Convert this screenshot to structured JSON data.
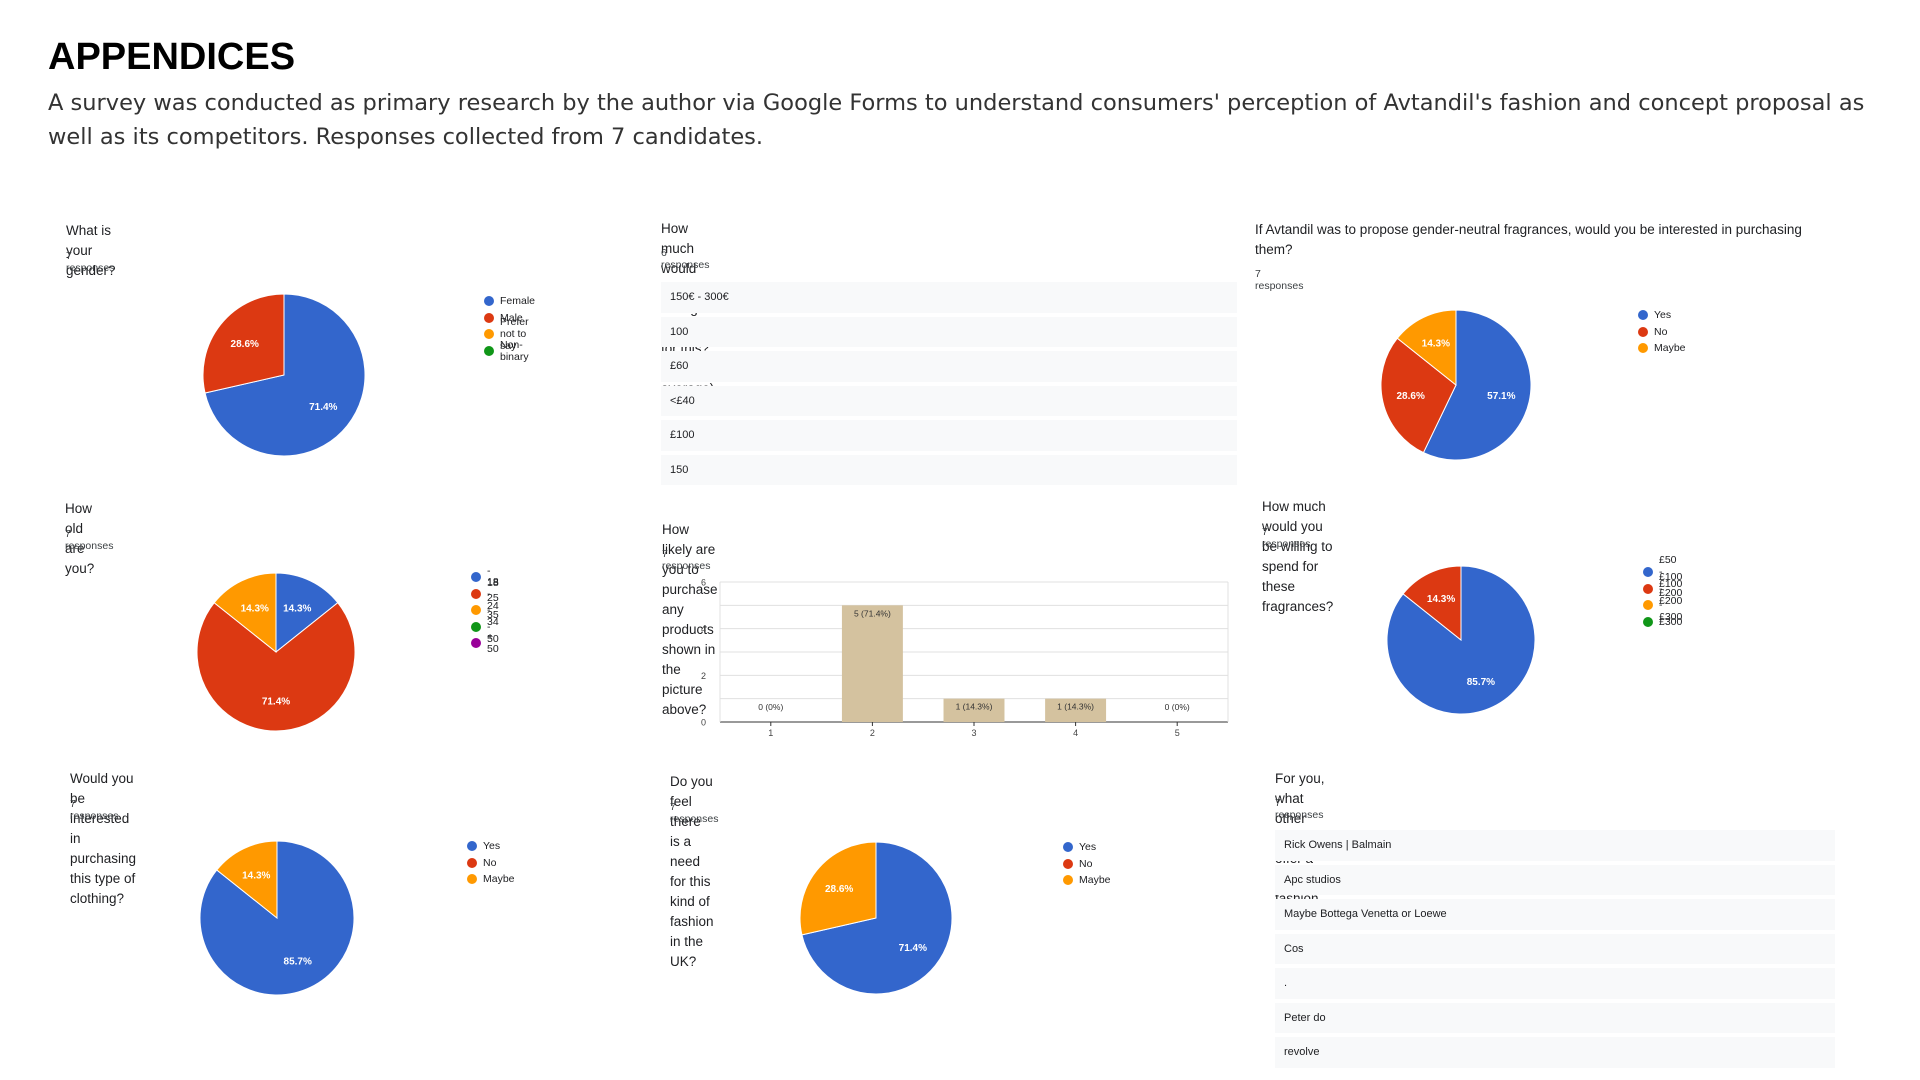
{
  "page": {
    "title": "APPENDICES",
    "intro": "A survey was conducted as primary research by the author via Google Forms to understand consumers' perception of Avtandil's fashion and concept proposal as well as its competitors. Responses collected from 7 candidates."
  },
  "colors": {
    "blue": "#3366cc",
    "red": "#dc3912",
    "orange": "#ff9900",
    "green": "#109618",
    "purple": "#990099",
    "bar": "#d4c29f"
  },
  "chart_data": [
    {
      "id": "gender",
      "type": "pie",
      "title": "What is your gender?",
      "responses": "7 responses",
      "slices": [
        {
          "label": "Female",
          "value": 5,
          "pct": "71.4%",
          "color": "#3366cc"
        },
        {
          "label": "Male",
          "value": 2,
          "pct": "28.6%",
          "color": "#dc3912"
        },
        {
          "label": "Prefer not to say",
          "value": 0,
          "pct": "",
          "color": "#ff9900"
        },
        {
          "label": "Non-binary",
          "value": 0,
          "pct": "",
          "color": "#109618"
        }
      ]
    },
    {
      "id": "age",
      "type": "pie",
      "title": "How old are you?",
      "responses": "7 responses",
      "slices": [
        {
          "label": "- 18",
          "value": 1,
          "pct": "14.3%",
          "color": "#3366cc"
        },
        {
          "label": "18 - 24",
          "value": 5,
          "pct": "71.4%",
          "color": "#dc3912"
        },
        {
          "label": "25 - 34",
          "value": 1,
          "pct": "14.3%",
          "color": "#ff9900"
        },
        {
          "label": "35 - 50",
          "value": 0,
          "pct": "",
          "color": "#109618"
        },
        {
          "label": "+ 50",
          "value": 0,
          "pct": "",
          "color": "#990099"
        }
      ]
    },
    {
      "id": "clothing",
      "type": "pie",
      "title": "Would you be interested in purchasing this type of clothing?",
      "responses": "7 responses",
      "slices": [
        {
          "label": "Yes",
          "value": 6,
          "pct": "85.7%",
          "color": "#3366cc"
        },
        {
          "label": "No",
          "value": 0,
          "pct": "",
          "color": "#dc3912"
        },
        {
          "label": "Maybe",
          "value": 1,
          "pct": "14.3%",
          "color": "#ff9900"
        }
      ]
    },
    {
      "id": "spend_list",
      "type": "table",
      "title": "How much would you be willing to spend for this? (in average)",
      "responses": "6 responses",
      "rows": [
        "150€ - 300€",
        "100",
        "£60",
        "<£40",
        "£100",
        "150"
      ]
    },
    {
      "id": "likely",
      "type": "bar",
      "title": "How likely are you to purchase any products shown in the picture above?",
      "responses": "7 responses",
      "categories": [
        "1",
        "2",
        "3",
        "4",
        "5"
      ],
      "values": [
        0,
        5,
        1,
        1,
        0
      ],
      "labels": [
        "0 (0%)",
        "5 (71.4%)",
        "1 (14.3%)",
        "1 (14.3%)",
        "0 (0%)"
      ],
      "yticks": [
        "0",
        "2",
        "4",
        "6"
      ],
      "ylim": [
        0,
        6
      ]
    },
    {
      "id": "uk_need",
      "type": "pie",
      "title": "Do you feel there is a need for this kind of fashion in the UK?",
      "responses": "7 responses",
      "slices": [
        {
          "label": "Yes",
          "value": 5,
          "pct": "71.4%",
          "color": "#3366cc"
        },
        {
          "label": "No",
          "value": 0,
          "pct": "",
          "color": "#dc3912"
        },
        {
          "label": "Maybe",
          "value": 2,
          "pct": "28.6%",
          "color": "#ff9900"
        }
      ]
    },
    {
      "id": "fragrance",
      "type": "pie",
      "title": "If Avtandil was to propose gender-neutral fragrances, would you be interested in purchasing them?",
      "responses": "7 responses",
      "slices": [
        {
          "label": "Yes",
          "value": 4,
          "pct": "57.1%",
          "color": "#3366cc"
        },
        {
          "label": "No",
          "value": 2,
          "pct": "28.6%",
          "color": "#dc3912"
        },
        {
          "label": "Maybe",
          "value": 1,
          "pct": "14.3%",
          "color": "#ff9900"
        }
      ]
    },
    {
      "id": "frag_spend",
      "type": "pie",
      "title": "How much would you be willing to spend for these fragrances?",
      "responses": "7 responses",
      "slices": [
        {
          "label": "£50 - £100",
          "value": 6,
          "pct": "85.7%",
          "color": "#3366cc"
        },
        {
          "label": "£100 - £200",
          "value": 1,
          "pct": "14.3%",
          "color": "#dc3912"
        },
        {
          "label": "£200 - £300",
          "value": 0,
          "pct": "",
          "color": "#ff9900"
        },
        {
          "label": "£300",
          "value": 0,
          "pct": "",
          "color": "#109618"
        }
      ]
    },
    {
      "id": "brands",
      "type": "table",
      "title": "For you, what other brands offer a similar fashion aesthetic to Avtandil?",
      "responses": "7 responses",
      "rows": [
        "Rick Owens | Balmain",
        "Apc studios",
        "Maybe Bottega Venetta or Loewe",
        "Cos",
        ".",
        "Peter do",
        "revolve"
      ]
    }
  ]
}
